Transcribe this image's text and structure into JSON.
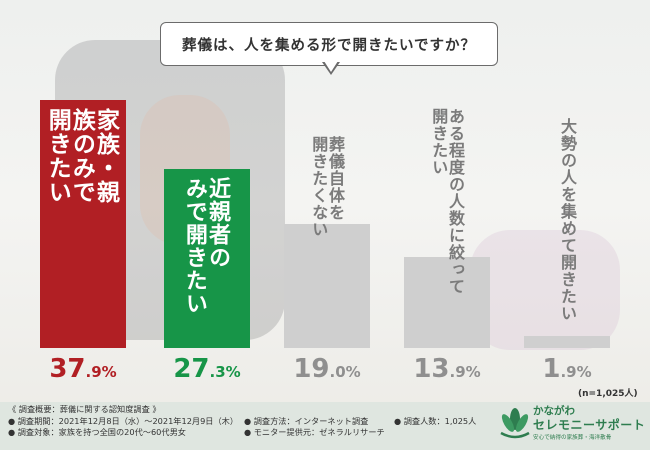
{
  "question": "葬儀は、人を集める形で開きたいですか？",
  "colors": {
    "family": "#b11f24",
    "relatives": "#179548",
    "other": "#cfcfcf",
    "other_text": "#8f8f8f"
  },
  "chart_data": {
    "type": "bar",
    "categories": [
      "家族・親族のみで開きたい",
      "近親者のみで開きたい",
      "葬儀自体を開きたくない",
      "ある程度の人数に絞って開きたい",
      "大勢の人を集めて開きたい"
    ],
    "values": [
      37.9,
      27.3,
      19.0,
      13.9,
      1.9
    ],
    "value_labels": [
      {
        "big": "37",
        "small": ".9%"
      },
      {
        "big": "27",
        "small": ".3%"
      },
      {
        "big": "19",
        "small": ".0%"
      },
      {
        "big": "13",
        "small": ".9%"
      },
      {
        "big": "1",
        "small": ".9%"
      }
    ],
    "category_lines": [
      [
        "家族・親",
        "族のみで",
        "開きたい"
      ],
      [
        "近親者の",
        "みで開きたい"
      ],
      [
        "葬儀自体を",
        "開きたくない"
      ],
      [
        "ある程度の人数に絞って",
        "開きたい"
      ],
      [
        "大勢の人を集めて開きたい"
      ]
    ],
    "ylim": [
      0,
      40
    ],
    "sample": "(n=1,025人)",
    "grid": false,
    "legend": "none"
  },
  "survey": {
    "title": "《 調査概要：葬儀に関する認知度調査 》",
    "period": "● 調査期間：2021年12月8日（水）〜2021年12月9日（木）",
    "method": "● 調査方法：インターネット調査",
    "count": "● 調査人数：1,025人",
    "target": "● 調査対象：家族を持つ全国の20代〜60代男女",
    "provider": "● モニター提供元：ゼネラルリサーチ"
  },
  "brand": {
    "top": "かながわ",
    "main": "セレモニーサポート",
    "sub": "安心で納得の家族葬・海洋散骨"
  }
}
